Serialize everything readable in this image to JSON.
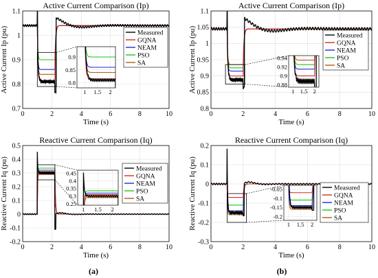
{
  "colors": {
    "Measured": "#000000",
    "GQNA": "#d62c1e",
    "NEAM": "#1f2bd6",
    "PSO": "#21c21a",
    "SA": "#b05a14"
  },
  "chart_data": [
    {
      "id": "a_ip",
      "type": "line",
      "title": "Active Current Comparison (Ip)",
      "xlabel": "Time (s)",
      "ylabel": "Active Current Ip (pu)",
      "xlim": [
        0,
        10
      ],
      "ylim": [
        0.7,
        1.1
      ],
      "xticks": [
        "0",
        "2",
        "4",
        "6",
        "8",
        "10"
      ],
      "yticks": [
        "0.7",
        "0.8",
        "0.9",
        "1",
        "1.1"
      ],
      "grid": true,
      "legend_position": "top-right",
      "legend": [
        "Measured",
        "GQNA",
        "NEAM",
        "PSO",
        "SA"
      ],
      "steady_value": 1.04,
      "fault_window": [
        1.0,
        2.2
      ],
      "series": [
        {
          "name": "Measured",
          "fault_value": 0.81
        },
        {
          "name": "GQNA",
          "fault_value": 0.815
        },
        {
          "name": "NEAM",
          "fault_value": 0.86
        },
        {
          "name": "PSO",
          "fault_value": 0.9
        },
        {
          "name": "SA",
          "fault_value": 0.84
        }
      ],
      "inset": {
        "xlim": [
          0.7,
          2.2
        ],
        "ylim": [
          0.78,
          0.94
        ],
        "xticks": [
          "1",
          "1.5",
          "2"
        ],
        "yticks": [
          "0.8",
          "0.85",
          "0.9"
        ]
      }
    },
    {
      "id": "b_ip",
      "type": "line",
      "title": "Active Current Comparison (Ip)",
      "xlabel": "Time (s)",
      "ylabel": "Active Current Ip (pu)",
      "xlim": [
        0,
        10
      ],
      "ylim": [
        0.8,
        1.1
      ],
      "xticks": [
        "0",
        "2",
        "4",
        "6",
        "8",
        "10"
      ],
      "yticks": [
        "0.8",
        "0.85",
        "0.9",
        "0.95",
        "1",
        "1.05",
        "1.1"
      ],
      "grid": true,
      "legend_position": "top-right",
      "legend": [
        "Measured",
        "GQNA",
        "NEAM",
        "PSO",
        "SA"
      ],
      "steady_value": 1.045,
      "fault_window": [
        1.0,
        2.0
      ],
      "series": [
        {
          "name": "Measured",
          "fault_value": 0.888
        },
        {
          "name": "GQNA",
          "fault_value": 0.9
        },
        {
          "name": "NEAM",
          "fault_value": 0.915
        },
        {
          "name": "PSO",
          "fault_value": 0.925
        },
        {
          "name": "SA",
          "fault_value": 0.935
        }
      ],
      "inset": {
        "xlim": [
          0.8,
          2.2
        ],
        "ylim": [
          0.875,
          0.945
        ],
        "xticks": [
          "1",
          "1.5",
          "2"
        ],
        "yticks": [
          "0.94",
          "0.92",
          "0.9",
          "0.88"
        ]
      }
    },
    {
      "id": "a_iq",
      "type": "line",
      "title": "Reactive Current Comparison (Iq)",
      "xlabel": "Time (s)",
      "ylabel": "Reactive Current Iq (pu)",
      "xlim": [
        0,
        10
      ],
      "ylim": [
        -0.2,
        0.5
      ],
      "xticks": [
        "0",
        "2",
        "4",
        "6",
        "8",
        "10"
      ],
      "yticks": [
        "-0.2",
        "-0.1",
        "0",
        "0.1",
        "0.2",
        "0.3",
        "0.4",
        "0.5"
      ],
      "grid": true,
      "legend_position": "top-right",
      "legend": [
        "Measured",
        "GQNA",
        "NEAM",
        "PSO",
        "SA"
      ],
      "steady_value": 0.0,
      "fault_window": [
        1.0,
        2.2
      ],
      "series": [
        {
          "name": "Measured",
          "fault_value": 0.3
        },
        {
          "name": "GQNA",
          "fault_value": 0.31
        },
        {
          "name": "NEAM",
          "fault_value": 0.32
        },
        {
          "name": "PSO",
          "fault_value": 0.335
        },
        {
          "name": "SA",
          "fault_value": 0.29
        }
      ],
      "inset": {
        "xlim": [
          0.8,
          2.2
        ],
        "ylim": [
          0.24,
          0.47
        ],
        "xticks": [
          "1",
          "1.5",
          "2"
        ],
        "yticks": [
          "0.45",
          "0.4",
          "0.35",
          "0.3",
          "0.25"
        ]
      }
    },
    {
      "id": "b_iq",
      "type": "line",
      "title": "Reactive Current Comparison (Iq)",
      "xlabel": "Time (s)",
      "ylabel": "Reactive Current Iq (pu)",
      "xlim": [
        0,
        10
      ],
      "ylim": [
        -0.3,
        0.2
      ],
      "xticks": [
        "0",
        "2",
        "4",
        "6",
        "8",
        "10"
      ],
      "yticks": [
        "-0.3",
        "-0.2",
        "-0.1",
        "0",
        "0.1",
        "0.2"
      ],
      "grid": true,
      "legend_position": "right",
      "legend": [
        "Measured",
        "GQNA",
        "NEAM",
        "PSO",
        "SA"
      ],
      "steady_value": 0.0,
      "fault_window": [
        1.0,
        2.0
      ],
      "series": [
        {
          "name": "Measured",
          "fault_value": -0.15
        },
        {
          "name": "GQNA",
          "fault_value": -0.07
        },
        {
          "name": "NEAM",
          "fault_value": -0.14
        },
        {
          "name": "PSO",
          "fault_value": -0.11
        },
        {
          "name": "SA",
          "fault_value": -0.16
        }
      ],
      "inset": {
        "xlim": [
          0.8,
          2.2
        ],
        "ylim": [
          -0.22,
          -0.03
        ],
        "xticks": [
          "1",
          "1.5",
          "2"
        ],
        "yticks": [
          "-0.05",
          "-0.1",
          "-0.15",
          "-0.2"
        ]
      }
    }
  ],
  "captions": {
    "a": "(a)",
    "b": "(b)"
  }
}
